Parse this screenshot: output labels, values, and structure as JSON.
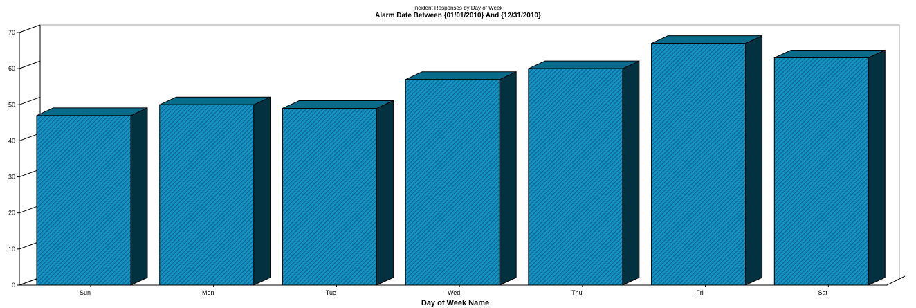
{
  "chart_data": {
    "type": "bar",
    "title": "Incident Responses by Day of Week",
    "subtitle": "Alarm Date Between {01/01/2010} And {12/31/2010}",
    "xlabel": "Day of Week Name",
    "ylabel": "",
    "categories": [
      "Sun",
      "Mon",
      "Tue",
      "Wed",
      "Thu",
      "Fri",
      "Sat"
    ],
    "values": [
      47,
      50,
      49,
      57,
      60,
      67,
      63
    ],
    "ylim": [
      0,
      70
    ],
    "yticks": [
      "0",
      "10",
      "20",
      "30",
      "40",
      "50",
      "60",
      "70"
    ],
    "grid": false,
    "legend": "none",
    "style": "3d-hatched",
    "colors": {
      "front": "#1592c4",
      "hatch": "#0b5f80",
      "top": "#0a6a8a",
      "side": "#02313f"
    }
  }
}
